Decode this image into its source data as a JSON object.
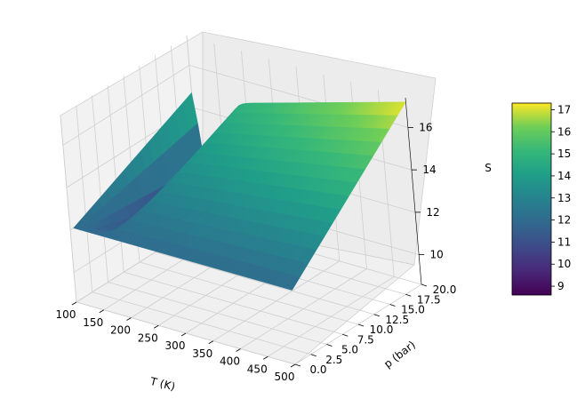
{
  "chart_data": {
    "type": "surface3d",
    "title": "",
    "xlabel": "T (K)",
    "ylabel": "p (bar)",
    "zlabel": "S",
    "colormap": "viridis",
    "x_ticks": [
      100,
      150,
      200,
      250,
      300,
      350,
      400,
      450,
      500
    ],
    "y_ticks": [
      0.0,
      2.5,
      5.0,
      7.5,
      10.0,
      12.5,
      15.0,
      17.5,
      20.0
    ],
    "z_ticks": [
      10,
      12,
      14,
      16
    ],
    "xlim": [
      100,
      500
    ],
    "ylim": [
      0,
      20
    ],
    "zlim": [
      8.6,
      17.4
    ],
    "colorbar": {
      "ticks": [
        9,
        10,
        11,
        12,
        13,
        14,
        15,
        16,
        17
      ],
      "range": [
        8.6,
        17.3
      ]
    },
    "grid": true,
    "surface": {
      "T_range": [
        100,
        500
      ],
      "p_range": [
        0.5,
        20
      ],
      "description_points": [
        {
          "T": 100,
          "p": 0.5,
          "S": 12.0
        },
        {
          "T": 100,
          "p": 20,
          "S": 14.5
        },
        {
          "T": 150,
          "p": 20,
          "S": 9.0
        },
        {
          "T": 500,
          "p": 0.5,
          "S": 12.0
        },
        {
          "T": 500,
          "p": 20,
          "S": 17.2
        }
      ]
    }
  }
}
